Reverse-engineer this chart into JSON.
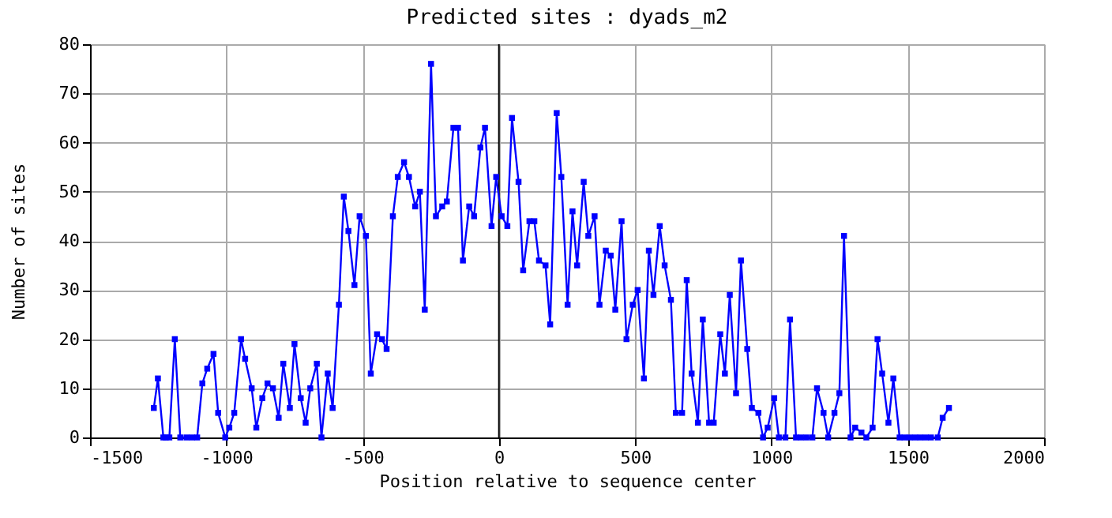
{
  "chart_data": {
    "type": "line",
    "title": "Predicted sites : dyads_m2",
    "xlabel": "Position relative to sequence center",
    "ylabel": "Number of sites",
    "x": [
      -1266,
      -1251,
      -1231,
      -1222,
      -1209,
      -1189,
      -1169,
      -1146,
      -1126,
      -1107,
      -1088,
      -1070,
      -1047,
      -1030,
      -1004,
      -989,
      -971,
      -946,
      -931,
      -907,
      -890,
      -868,
      -849,
      -829,
      -808,
      -791,
      -767,
      -750,
      -727,
      -709,
      -692,
      -668,
      -651,
      -628,
      -610,
      -587,
      -569,
      -552,
      -530,
      -511,
      -488,
      -470,
      -447,
      -429,
      -412,
      -389,
      -371,
      -348,
      -330,
      -307,
      -290,
      -272,
      -249,
      -231,
      -208,
      -191,
      -167,
      -150,
      -132,
      -109,
      -91,
      -68,
      -51,
      -27,
      -10,
      10,
      31,
      48,
      72,
      89,
      112,
      130,
      147,
      171,
      188,
      212,
      229,
      252,
      270,
      287,
      311,
      328,
      351,
      369,
      392,
      410,
      427,
      450,
      468,
      491,
      509,
      532,
      550,
      567,
      590,
      608,
      631,
      649,
      672,
      689,
      707,
      730,
      748,
      771,
      788,
      812,
      829,
      847,
      870,
      888,
      911,
      928,
      952,
      969,
      986,
      1010,
      1027,
      1051,
      1068,
      1090,
      1108,
      1128,
      1150,
      1167,
      1191,
      1208,
      1231,
      1249,
      1266,
      1290,
      1307,
      1330,
      1348,
      1371,
      1389,
      1406,
      1429,
      1447,
      1470,
      1488,
      1507,
      1527,
      1546,
      1566,
      1585,
      1610,
      1628,
      1651
    ],
    "series": [
      {
        "color": "#0000ff",
        "values": [
          6,
          12,
          0,
          0,
          0,
          20,
          0,
          0,
          0,
          0,
          11,
          14,
          17,
          5,
          0,
          2,
          5,
          20,
          16,
          10,
          2,
          8,
          11,
          10,
          4,
          15,
          6,
          19,
          8,
          3,
          10,
          15,
          0,
          13,
          6,
          27,
          49,
          42,
          31,
          45,
          41,
          13,
          21,
          20,
          18,
          45,
          53,
          56,
          53,
          47,
          50,
          26,
          76,
          45,
          47,
          48,
          63,
          63,
          36,
          47,
          45,
          59,
          63,
          43,
          53,
          45,
          43,
          65,
          52,
          34,
          44,
          44,
          36,
          35,
          23,
          66,
          53,
          27,
          46,
          35,
          52,
          41,
          45,
          27,
          38,
          37,
          26,
          44,
          20,
          27,
          30,
          12,
          38,
          29,
          43,
          35,
          28,
          5,
          5,
          32,
          13,
          3,
          24,
          3,
          3,
          21,
          13,
          29,
          9,
          36,
          18,
          6,
          5,
          0,
          2,
          8,
          0,
          0,
          24,
          0,
          0,
          0,
          0,
          10,
          5,
          0,
          5,
          9,
          41,
          0,
          2,
          1,
          0,
          2,
          20,
          13,
          3,
          12,
          0,
          0,
          0,
          0,
          0,
          0,
          0,
          0,
          4,
          6
        ]
      }
    ],
    "xlim": [
      -1500,
      2000
    ],
    "xticks": [
      -1500,
      -1000,
      -500,
      0,
      500,
      1000,
      1500,
      2000
    ],
    "ylim": [
      0,
      80
    ],
    "yticks": [
      0,
      10,
      20,
      30,
      40,
      50,
      60,
      70,
      80
    ],
    "grid": true,
    "marker": "square",
    "line_style": "solid",
    "ref_lines": [
      {
        "axis": "x",
        "value": 0,
        "color": "#000000"
      }
    ]
  }
}
